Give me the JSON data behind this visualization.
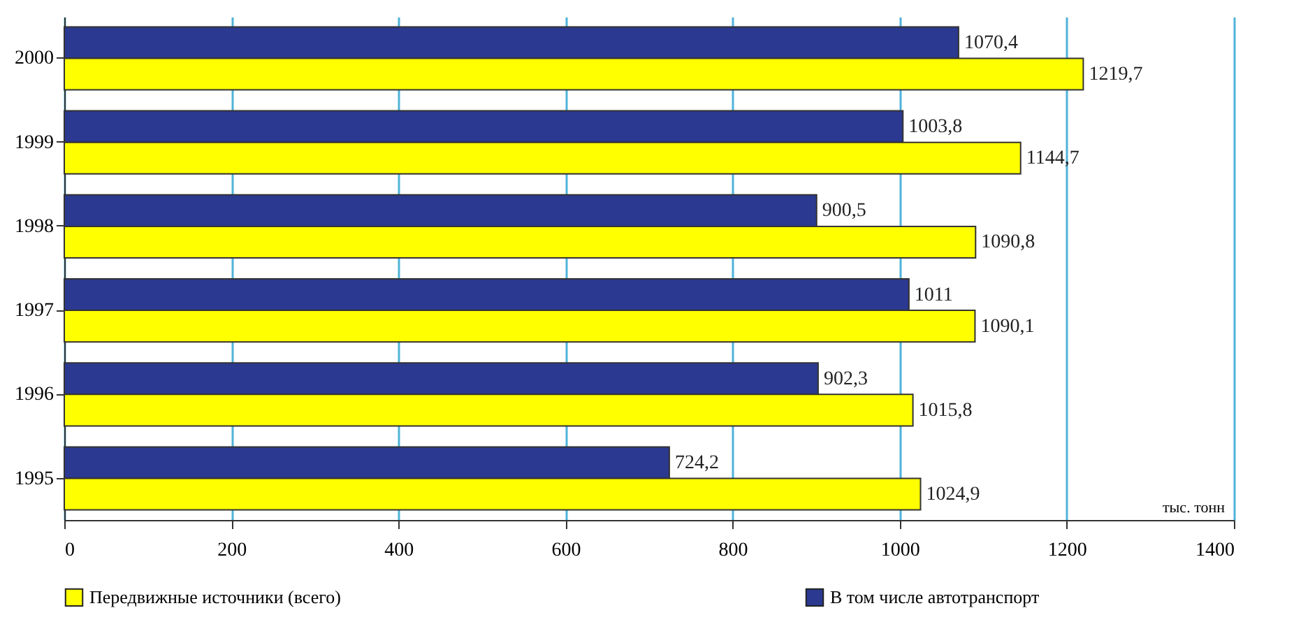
{
  "chart_data": {
    "type": "bar",
    "orientation": "horizontal",
    "xlabel": "тыс. тонн",
    "categories": [
      "2000",
      "1999",
      "1998",
      "1997",
      "1996",
      "1995"
    ],
    "series": [
      {
        "name": "В том числе автотранспорт",
        "color": "#2b3990",
        "values": [
          1070.4,
          1003.8,
          900.5,
          1011,
          902.3,
          724.2
        ],
        "value_labels": [
          "1070,4",
          "1003,8",
          "900,5",
          "1011",
          "902,3",
          "724,2"
        ]
      },
      {
        "name": "Передвижные источники (всего)",
        "color": "#ffff00",
        "values": [
          1219.7,
          1144.7,
          1090.8,
          1090.1,
          1015.8,
          1024.9
        ],
        "value_labels": [
          "1219,7",
          "1144,7",
          "1090,8",
          "1090,1",
          "1015,8",
          "1024,9"
        ]
      }
    ],
    "xlim": [
      0,
      1400
    ],
    "xticks": [
      0,
      200,
      400,
      600,
      800,
      1000,
      1200,
      1400
    ],
    "grid": "x",
    "legend": "bottom"
  }
}
